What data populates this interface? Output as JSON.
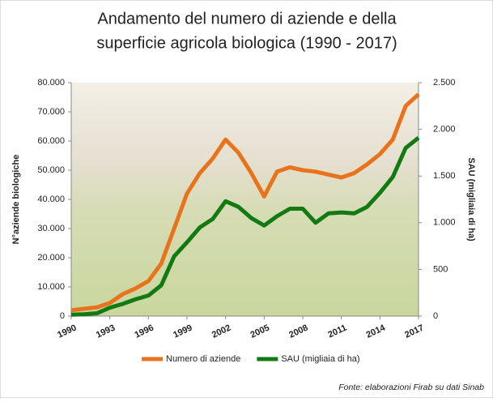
{
  "chart_data": {
    "type": "line",
    "title": [
      "Andamento del numero di aziende e della",
      "superficie agricola biologica (1990 - 2017)"
    ],
    "ylabel": "N°aziende biologiche",
    "y2label": "SAU (migliaia  di ha)",
    "source": "Fonte: elaborazioni Firab su dati Sinab",
    "x": [
      1990,
      1991,
      1992,
      1993,
      1994,
      1995,
      1996,
      1997,
      1998,
      1999,
      2000,
      2001,
      2002,
      2003,
      2004,
      2005,
      2006,
      2007,
      2008,
      2009,
      2010,
      2011,
      2012,
      2013,
      2014,
      2015,
      2016,
      2017
    ],
    "xlim": [
      1990,
      2017
    ],
    "xticks": [
      1990,
      1993,
      1996,
      1999,
      2002,
      2005,
      2008,
      2011,
      2014,
      2017
    ],
    "ylim": [
      0,
      80000
    ],
    "yticks": [
      {
        "value": 0,
        "label": "0"
      },
      {
        "value": 10000,
        "label": "10.000"
      },
      {
        "value": 20000,
        "label": "20.000"
      },
      {
        "value": 30000,
        "label": "30.000"
      },
      {
        "value": 40000,
        "label": "40.000"
      },
      {
        "value": 50000,
        "label": "50.000"
      },
      {
        "value": 60000,
        "label": "60.000"
      },
      {
        "value": 70000,
        "label": "70.000"
      },
      {
        "value": 80000,
        "label": "80.000"
      }
    ],
    "y2lim": [
      0,
      2500
    ],
    "y2ticks": [
      0,
      500,
      {
        "value": 1000,
        "label": "1.000"
      },
      {
        "value": 1500,
        "label": "1.500"
      },
      {
        "value": 2000,
        "label": "2.000"
      },
      {
        "value": 2500,
        "label": "2.500"
      }
    ],
    "legend": "bottom",
    "series": [
      {
        "name": "Numero di aziende",
        "color": "#e8731c",
        "values": [
          2000,
          2500,
          3000,
          4500,
          7500,
          9500,
          12000,
          18000,
          30000,
          42000,
          49000,
          54000,
          60500,
          56000,
          49000,
          41000,
          49500,
          51000,
          50000,
          49500,
          48500,
          47500,
          49000,
          52000,
          55500,
          60500,
          72000,
          76000
        ]
      },
      {
        "name": "SAU (migliaia  di ha)",
        "color": "#137a13",
        "axis": "y2",
        "values": [
          15,
          20,
          30,
          90,
          130,
          180,
          220,
          330,
          640,
          790,
          950,
          1040,
          1230,
          1170,
          1050,
          970,
          1070,
          1150,
          1150,
          1000,
          1100,
          1110,
          1100,
          1170,
          1320,
          1490,
          1800,
          1910
        ]
      }
    ]
  }
}
